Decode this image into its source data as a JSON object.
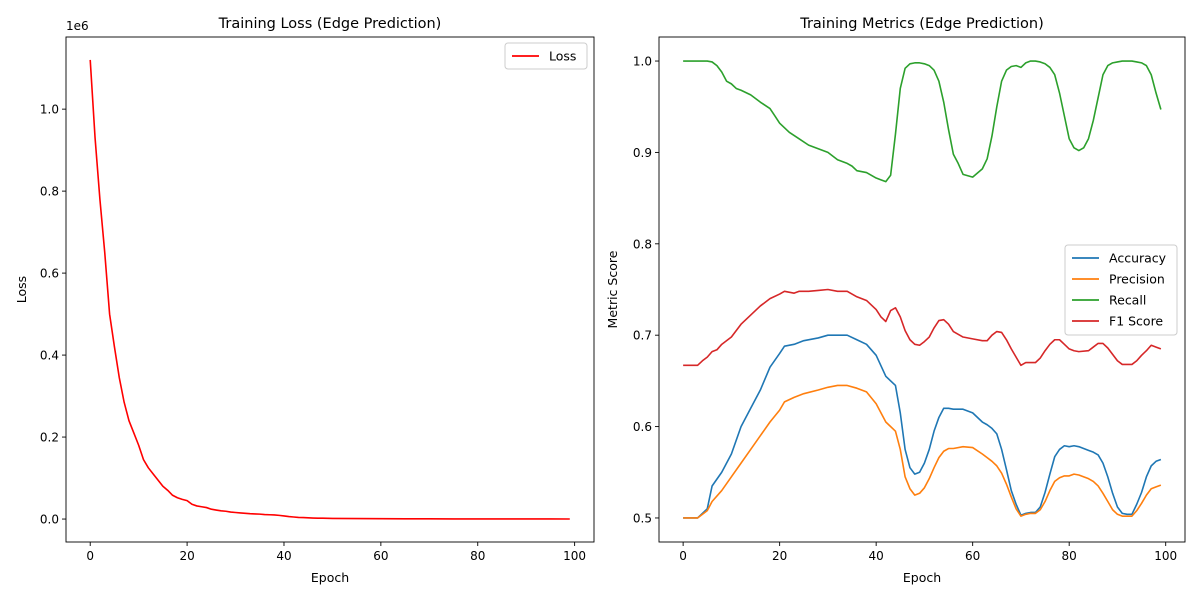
{
  "chart_data": [
    {
      "type": "line",
      "title": "Training Loss (Edge Prediction)",
      "xlabel": "Epoch",
      "ylabel": "Loss",
      "offset_text": "1e6",
      "xlim": [
        -5,
        104
      ],
      "ylim": [
        -56000,
        1176000
      ],
      "xticks": [
        0,
        20,
        40,
        60,
        80,
        100
      ],
      "yticks": [
        0,
        200000,
        400000,
        600000,
        800000,
        1000000
      ],
      "ytick_labels": [
        "0.0",
        "0.2",
        "0.4",
        "0.6",
        "0.8",
        "1.0"
      ],
      "legend_position": "upper right",
      "grid": false,
      "series": [
        {
          "name": "Loss",
          "color": "#ff0000",
          "x": [
            0,
            1,
            2,
            3,
            4,
            5,
            6,
            7,
            8,
            9,
            10,
            11,
            12,
            13,
            14,
            15,
            16,
            17,
            18,
            19,
            20,
            21,
            22,
            23,
            24,
            25,
            26,
            27,
            28,
            29,
            30,
            31,
            32,
            33,
            34,
            35,
            36,
            37,
            38,
            39,
            40,
            41,
            42,
            43,
            44,
            45,
            46,
            47,
            48,
            49,
            50,
            55,
            60,
            65,
            70,
            75,
            80,
            85,
            90,
            95,
            99
          ],
          "values": [
            1120000,
            930000,
            780000,
            650000,
            500000,
            420000,
            345000,
            285000,
            240000,
            210000,
            180000,
            145000,
            125000,
            110000,
            95000,
            80000,
            70000,
            58000,
            52000,
            48000,
            45000,
            36000,
            32000,
            30000,
            28000,
            24000,
            22000,
            20000,
            19000,
            17000,
            16000,
            15000,
            14000,
            13000,
            12500,
            12000,
            11000,
            10500,
            10000,
            9000,
            7500,
            6000,
            5000,
            4000,
            3500,
            3000,
            2500,
            2200,
            2000,
            1800,
            1600,
            1100,
            800,
            600,
            450,
            350,
            280,
            220,
            180,
            150,
            130
          ]
        }
      ]
    },
    {
      "type": "line",
      "title": "Training Metrics (Edge Prediction)",
      "xlabel": "Epoch",
      "ylabel": "Metric Score",
      "xlim": [
        -5,
        104
      ],
      "ylim": [
        0.4737,
        1.0263
      ],
      "xticks": [
        0,
        20,
        40,
        60,
        80,
        100
      ],
      "yticks": [
        0.5,
        0.6,
        0.7,
        0.8,
        0.9,
        1.0
      ],
      "ytick_labels": [
        "0.5",
        "0.6",
        "0.7",
        "0.8",
        "0.9",
        "1.0"
      ],
      "legend_position": "center right",
      "grid": false,
      "series": [
        {
          "name": "Accuracy",
          "color": "#1f77b4",
          "x": [
            0,
            3,
            5,
            6,
            8,
            10,
            12,
            14,
            16,
            18,
            20,
            21,
            23,
            25,
            28,
            30,
            32,
            34,
            36,
            38,
            40,
            42,
            44,
            45,
            46,
            47,
            48,
            49,
            50,
            51,
            52,
            53,
            54,
            55,
            56,
            58,
            60,
            62,
            63,
            64,
            65,
            66,
            67,
            68,
            69,
            70,
            71,
            72,
            73,
            74,
            75,
            76,
            77,
            78,
            79,
            80,
            81,
            82,
            84,
            85,
            86,
            87,
            88,
            89,
            90,
            91,
            92,
            93,
            94,
            95,
            96,
            97,
            98,
            99
          ],
          "values": [
            0.5,
            0.5,
            0.51,
            0.535,
            0.55,
            0.57,
            0.6,
            0.62,
            0.64,
            0.665,
            0.68,
            0.688,
            0.69,
            0.694,
            0.697,
            0.7,
            0.7,
            0.7,
            0.695,
            0.69,
            0.678,
            0.655,
            0.645,
            0.615,
            0.575,
            0.555,
            0.548,
            0.55,
            0.56,
            0.575,
            0.595,
            0.61,
            0.62,
            0.62,
            0.619,
            0.619,
            0.615,
            0.605,
            0.602,
            0.598,
            0.592,
            0.575,
            0.553,
            0.53,
            0.515,
            0.503,
            0.505,
            0.506,
            0.506,
            0.512,
            0.528,
            0.548,
            0.567,
            0.575,
            0.579,
            0.578,
            0.579,
            0.578,
            0.574,
            0.572,
            0.569,
            0.56,
            0.545,
            0.527,
            0.512,
            0.505,
            0.504,
            0.504,
            0.515,
            0.528,
            0.545,
            0.557,
            0.562,
            0.564
          ]
        },
        {
          "name": "Precision",
          "color": "#ff7f0e",
          "x": [
            0,
            3,
            5,
            6,
            8,
            10,
            12,
            14,
            16,
            18,
            20,
            21,
            23,
            25,
            28,
            30,
            32,
            34,
            36,
            38,
            40,
            42,
            44,
            45,
            46,
            47,
            48,
            49,
            50,
            51,
            52,
            53,
            54,
            55,
            56,
            58,
            60,
            62,
            63,
            64,
            65,
            66,
            67,
            68,
            69,
            70,
            71,
            72,
            73,
            74,
            75,
            76,
            77,
            78,
            79,
            80,
            81,
            82,
            84,
            85,
            86,
            87,
            88,
            89,
            90,
            91,
            92,
            93,
            94,
            95,
            96,
            97,
            98,
            99
          ],
          "values": [
            0.5,
            0.5,
            0.508,
            0.518,
            0.53,
            0.545,
            0.56,
            0.575,
            0.59,
            0.605,
            0.618,
            0.627,
            0.632,
            0.636,
            0.64,
            0.643,
            0.645,
            0.645,
            0.642,
            0.638,
            0.625,
            0.605,
            0.595,
            0.575,
            0.545,
            0.532,
            0.525,
            0.527,
            0.533,
            0.543,
            0.555,
            0.566,
            0.573,
            0.576,
            0.576,
            0.578,
            0.577,
            0.57,
            0.566,
            0.562,
            0.557,
            0.549,
            0.537,
            0.523,
            0.51,
            0.502,
            0.504,
            0.505,
            0.505,
            0.509,
            0.518,
            0.53,
            0.54,
            0.544,
            0.546,
            0.546,
            0.548,
            0.547,
            0.543,
            0.54,
            0.535,
            0.527,
            0.518,
            0.509,
            0.504,
            0.502,
            0.502,
            0.502,
            0.508,
            0.516,
            0.525,
            0.532,
            0.534,
            0.536
          ]
        },
        {
          "name": "Recall",
          "color": "#2ca02c",
          "x": [
            0,
            2,
            4,
            5,
            6,
            7,
            8,
            9,
            10,
            11,
            12,
            14,
            16,
            18,
            19,
            20,
            22,
            24,
            26,
            28,
            30,
            32,
            34,
            35,
            36,
            38,
            40,
            41,
            42,
            43,
            44,
            45,
            46,
            47,
            48,
            49,
            50,
            51,
            52,
            53,
            54,
            55,
            56,
            57,
            58,
            60,
            62,
            63,
            64,
            65,
            66,
            67,
            68,
            69,
            70,
            71,
            72,
            73,
            74,
            75,
            76,
            77,
            78,
            79,
            80,
            81,
            82,
            83,
            84,
            85,
            86,
            87,
            88,
            89,
            90,
            91,
            92,
            93,
            94,
            95,
            96,
            97,
            98,
            99
          ],
          "values": [
            1.0,
            1.0,
            1.0,
            1.0,
            0.999,
            0.995,
            0.988,
            0.978,
            0.975,
            0.97,
            0.968,
            0.963,
            0.955,
            0.948,
            0.94,
            0.932,
            0.922,
            0.915,
            0.908,
            0.904,
            0.9,
            0.892,
            0.888,
            0.885,
            0.88,
            0.878,
            0.872,
            0.87,
            0.868,
            0.875,
            0.92,
            0.97,
            0.992,
            0.997,
            0.998,
            0.998,
            0.997,
            0.995,
            0.99,
            0.978,
            0.955,
            0.925,
            0.898,
            0.888,
            0.876,
            0.873,
            0.882,
            0.893,
            0.918,
            0.95,
            0.978,
            0.99,
            0.994,
            0.995,
            0.993,
            0.998,
            1.0,
            1.0,
            0.999,
            0.997,
            0.993,
            0.985,
            0.965,
            0.94,
            0.915,
            0.905,
            0.902,
            0.905,
            0.915,
            0.935,
            0.96,
            0.985,
            0.995,
            0.998,
            0.999,
            1.0,
            1.0,
            1.0,
            0.999,
            0.998,
            0.995,
            0.985,
            0.965,
            0.947
          ]
        },
        {
          "name": "F1 Score",
          "color": "#d62728",
          "x": [
            0,
            3,
            4,
            5,
            6,
            7,
            8,
            10,
            12,
            14,
            16,
            18,
            20,
            21,
            23,
            24,
            26,
            28,
            30,
            32,
            34,
            36,
            38,
            40,
            41,
            42,
            43,
            44,
            45,
            46,
            47,
            48,
            49,
            50,
            51,
            52,
            53,
            54,
            55,
            56,
            58,
            60,
            62,
            63,
            64,
            65,
            66,
            67,
            68,
            69,
            70,
            71,
            72,
            73,
            74,
            75,
            76,
            77,
            78,
            79,
            80,
            81,
            82,
            84,
            85,
            86,
            87,
            88,
            89,
            90,
            91,
            92,
            93,
            94,
            95,
            96,
            97,
            98,
            99
          ],
          "values": [
            0.667,
            0.667,
            0.672,
            0.676,
            0.682,
            0.684,
            0.69,
            0.698,
            0.712,
            0.722,
            0.732,
            0.74,
            0.745,
            0.748,
            0.746,
            0.748,
            0.748,
            0.749,
            0.75,
            0.748,
            0.748,
            0.742,
            0.738,
            0.728,
            0.72,
            0.715,
            0.727,
            0.73,
            0.72,
            0.705,
            0.695,
            0.69,
            0.689,
            0.693,
            0.698,
            0.708,
            0.716,
            0.717,
            0.712,
            0.704,
            0.698,
            0.696,
            0.694,
            0.694,
            0.7,
            0.704,
            0.703,
            0.695,
            0.685,
            0.676,
            0.667,
            0.67,
            0.67,
            0.67,
            0.675,
            0.683,
            0.69,
            0.695,
            0.695,
            0.69,
            0.685,
            0.683,
            0.682,
            0.683,
            0.687,
            0.691,
            0.691,
            0.686,
            0.679,
            0.672,
            0.668,
            0.668,
            0.668,
            0.672,
            0.678,
            0.683,
            0.689,
            0.687,
            0.685
          ]
        }
      ]
    }
  ]
}
